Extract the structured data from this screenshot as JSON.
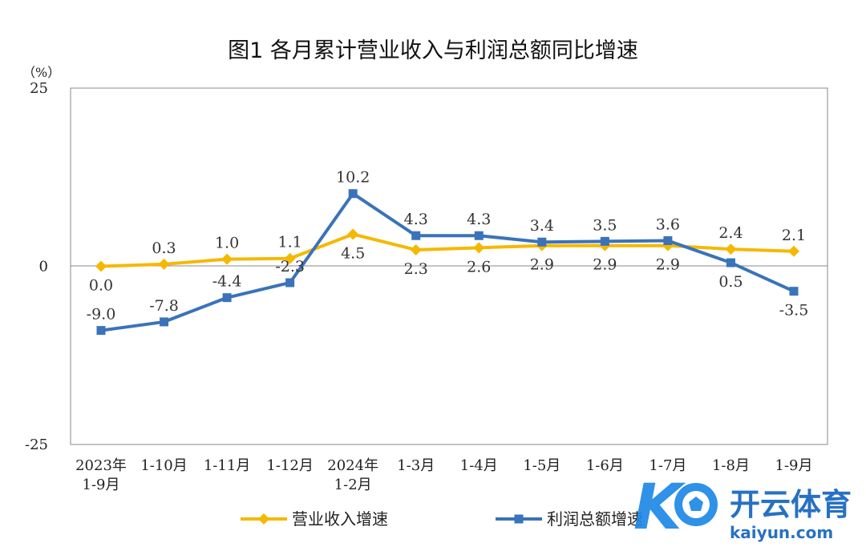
{
  "chart_data": {
    "type": "line",
    "title": "图1  各月累计营业收入与利润总额同比增速",
    "unit": "（%）",
    "ylim": [
      -25,
      25
    ],
    "y_ticks": [
      25,
      0,
      -25
    ],
    "grid": false,
    "legend_position": "bottom",
    "categories": [
      [
        "2023年",
        "1-9月"
      ],
      [
        "1-10月"
      ],
      [
        "1-11月"
      ],
      [
        "1-12月"
      ],
      [
        "2024年",
        "1-2月"
      ],
      [
        "1-3月"
      ],
      [
        "1-4月"
      ],
      [
        "1-5月"
      ],
      [
        "1-6月"
      ],
      [
        "1-7月"
      ],
      [
        "1-8月"
      ],
      [
        "1-9月"
      ]
    ],
    "series": [
      {
        "name": "营业收入增速",
        "color": "#F5B800",
        "marker": "diamond",
        "values": [
          0.0,
          0.3,
          1.0,
          1.1,
          4.5,
          2.3,
          2.6,
          2.9,
          2.9,
          2.9,
          2.4,
          2.1
        ],
        "labels": [
          "0.0",
          "0.3",
          "1.0",
          "1.1",
          "4.5",
          "2.3",
          "2.6",
          "2.9",
          "2.9",
          "2.9",
          "2.4",
          "2.1"
        ],
        "label_pos": [
          "below",
          "above",
          "above",
          "above",
          "below",
          "below",
          "below",
          "below",
          "below",
          "below",
          "above",
          "above"
        ]
      },
      {
        "name": "利润总额增速",
        "color": "#3A73B9",
        "marker": "square",
        "values": [
          -9.0,
          -7.8,
          -4.4,
          -2.3,
          10.2,
          4.3,
          4.3,
          3.4,
          3.5,
          3.6,
          0.5,
          -3.5
        ],
        "labels": [
          "-9.0",
          "-7.8",
          "-4.4",
          "-2.3",
          "10.2",
          "4.3",
          "4.3",
          "3.4",
          "3.5",
          "3.6",
          "0.5",
          "-3.5"
        ],
        "label_pos": [
          "above",
          "above",
          "above",
          "above",
          "above",
          "above",
          "above",
          "above",
          "above",
          "above",
          "below",
          "below"
        ]
      }
    ]
  },
  "watermark": {
    "brand": "开云体育",
    "domain": "kaiyun.com",
    "icon": "soccer-ball-icon"
  }
}
